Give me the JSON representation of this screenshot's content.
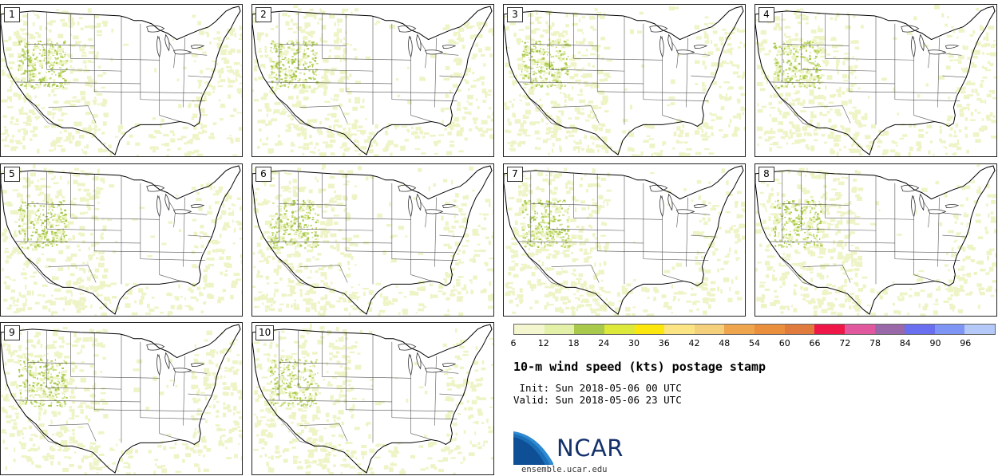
{
  "panels": [
    {
      "label": "1"
    },
    {
      "label": "2"
    },
    {
      "label": "3"
    },
    {
      "label": "4"
    },
    {
      "label": "5"
    },
    {
      "label": "6"
    },
    {
      "label": "7"
    },
    {
      "label": "8"
    },
    {
      "label": "9"
    },
    {
      "label": "10"
    }
  ],
  "legend": {
    "colors": [
      "#f4f6d0",
      "#e2f0a8",
      "#a9c94c",
      "#dce83a",
      "#fbe70e",
      "#fae483",
      "#f4cf7c",
      "#eea54d",
      "#e98f3e",
      "#e07b3d",
      "#ee1747",
      "#e2589f",
      "#9968a8",
      "#6a6ff0",
      "#7f95f6",
      "#b4c9f7"
    ],
    "ticks": [
      "6",
      "12",
      "18",
      "24",
      "30",
      "36",
      "42",
      "48",
      "54",
      "60",
      "66",
      "72",
      "78",
      "84",
      "90",
      "96"
    ]
  },
  "title": "10-m wind speed (kts) postage stamp",
  "init": " Init: Sun 2018-05-06 00 UTC",
  "valid": "Valid: Sun 2018-05-06 23 UTC",
  "logo": {
    "text": "NCAR",
    "url": "ensemble.ucar.edu"
  }
}
